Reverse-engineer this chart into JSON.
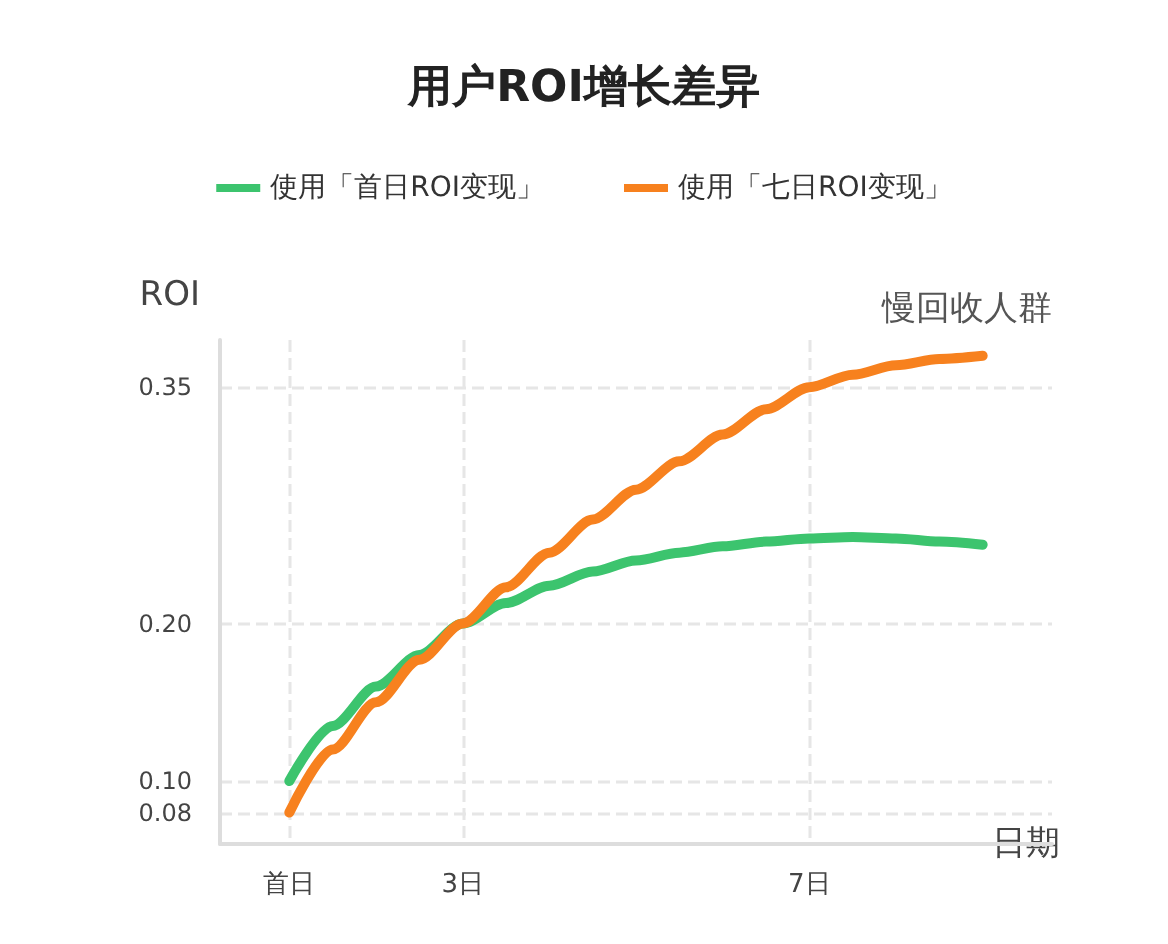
{
  "chart_data": {
    "type": "line",
    "title": "用户ROI增长差异",
    "xlabel": "日期",
    "ylabel": "ROI",
    "annotations": [
      "慢回收人群"
    ],
    "xlim": [
      0.2,
      9.8
    ],
    "ylim": [
      0.06,
      0.38
    ],
    "xticks": [
      {
        "value": 1,
        "label": "首日"
      },
      {
        "value": 3,
        "label": "3日"
      },
      {
        "value": 7,
        "label": "7日"
      }
    ],
    "yticks": [
      0.08,
      {
        "value": 0.1,
        "label": "0.10"
      },
      {
        "value": 0.2,
        "label": "0.20"
      },
      0.35
    ],
    "grid": true,
    "legend": "top",
    "marker": "none",
    "line_style": "solid",
    "series": [
      {
        "name": "使用「首日ROI变现」",
        "color": "#3cc46e",
        "x": [
          1,
          1.5,
          2,
          2.5,
          3,
          3.5,
          4,
          4.5,
          5,
          5.5,
          6,
          6.5,
          7,
          7.5,
          8,
          8.5,
          9
        ],
        "values": [
          0.1,
          0.135,
          0.16,
          0.18,
          0.2,
          0.213,
          0.224,
          0.233,
          0.24,
          0.245,
          0.249,
          0.252,
          0.254,
          0.255,
          0.254,
          0.252,
          0.25
        ]
      },
      {
        "name": "使用「七日ROI变现」",
        "color": "#f7811e",
        "x": [
          1,
          1.5,
          2,
          2.5,
          3,
          3.5,
          4,
          4.5,
          5,
          5.5,
          6,
          6.5,
          7,
          7.5,
          8,
          8.5,
          9
        ],
        "values": [
          0.08,
          0.12,
          0.15,
          0.177,
          0.2,
          0.223,
          0.245,
          0.266,
          0.285,
          0.303,
          0.32,
          0.336,
          0.35,
          0.358,
          0.364,
          0.368,
          0.37
        ]
      }
    ]
  }
}
